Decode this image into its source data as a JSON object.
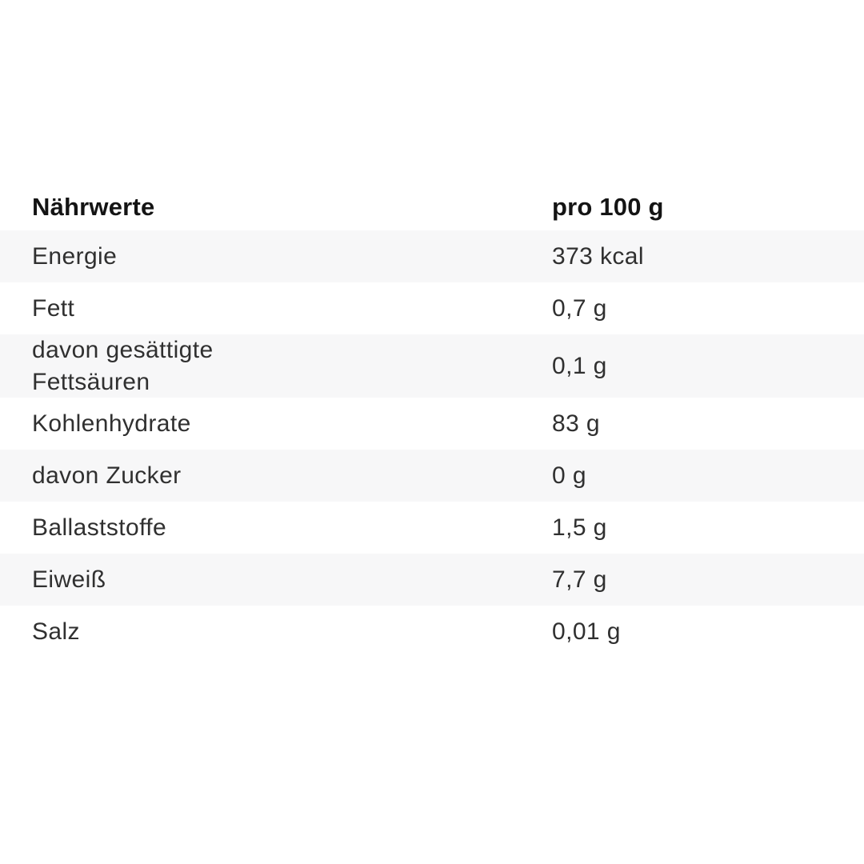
{
  "panel": {
    "header": {
      "label": "Nährwerte",
      "unit": "pro 100 g"
    },
    "rows": [
      {
        "label": "Energie",
        "value": "373 kcal"
      },
      {
        "label": "Fett",
        "value": "0,7 g"
      },
      {
        "label": "davon gesättigte Fettsäuren",
        "value": "0,1 g"
      },
      {
        "label": "Kohlenhydrate",
        "value": "83 g"
      },
      {
        "label": "davon Zucker",
        "value": "0 g"
      },
      {
        "label": "Ballaststoffe",
        "value": "1,5 g"
      },
      {
        "label": "Eiweiß",
        "value": "7,7 g"
      },
      {
        "label": "Salz",
        "value": "0,01 g"
      }
    ],
    "colors": {
      "background": "#ffffff",
      "stripe": "#f7f7f8",
      "text": "#303030",
      "heading": "#141414"
    }
  }
}
